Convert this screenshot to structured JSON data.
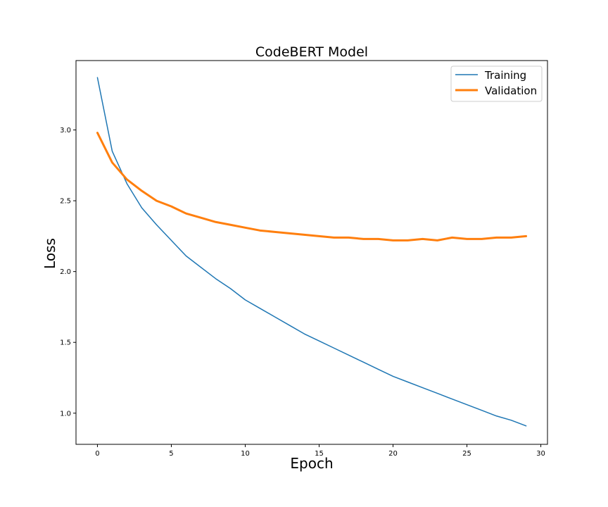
{
  "chart_data": {
    "type": "line",
    "title": "CodeBERT Model",
    "xlabel": "Epoch",
    "ylabel": "Loss",
    "xlim": [
      -1.45,
      30.45
    ],
    "ylim": [
      0.78,
      3.49
    ],
    "xticks": [
      0,
      5,
      10,
      15,
      20,
      25,
      30
    ],
    "yticks": [
      1.0,
      1.5,
      2.0,
      2.5,
      3.0
    ],
    "grid": false,
    "legend": "top-right",
    "x": [
      0,
      1,
      2,
      3,
      4,
      5,
      6,
      7,
      8,
      9,
      10,
      11,
      12,
      13,
      14,
      15,
      16,
      17,
      18,
      19,
      20,
      21,
      22,
      23,
      24,
      25,
      26,
      27,
      28,
      29
    ],
    "series": [
      {
        "name": "Training",
        "color": "#1f77b4",
        "values": [
          3.37,
          2.85,
          2.62,
          2.45,
          2.33,
          2.22,
          2.11,
          2.03,
          1.95,
          1.88,
          1.8,
          1.74,
          1.68,
          1.62,
          1.56,
          1.51,
          1.46,
          1.41,
          1.36,
          1.31,
          1.26,
          1.22,
          1.18,
          1.14,
          1.1,
          1.06,
          1.02,
          0.98,
          0.95,
          0.91
        ]
      },
      {
        "name": "Validation",
        "color": "#ff7f0e",
        "values": [
          2.98,
          2.77,
          2.65,
          2.57,
          2.5,
          2.46,
          2.41,
          2.38,
          2.35,
          2.33,
          2.31,
          2.29,
          2.28,
          2.27,
          2.26,
          2.25,
          2.24,
          2.24,
          2.23,
          2.23,
          2.22,
          2.22,
          2.23,
          2.22,
          2.24,
          2.23,
          2.23,
          2.24,
          2.24,
          2.25
        ]
      }
    ]
  }
}
